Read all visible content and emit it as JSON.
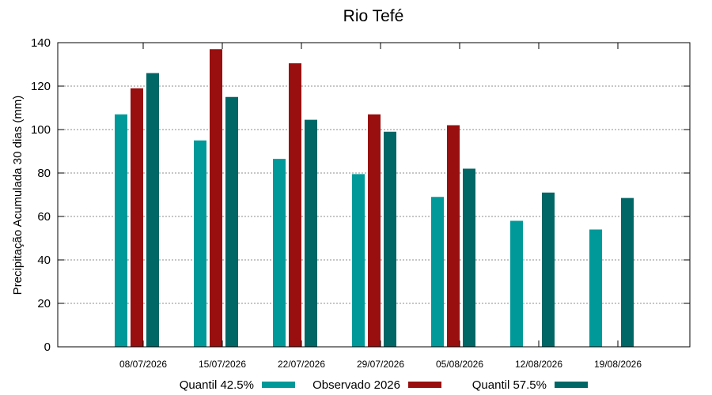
{
  "chart_data": {
    "type": "bar",
    "title": "Rio Tefé",
    "ylabel": "Precipitação Acumulada 30 dias (mm)",
    "xlabel": "",
    "ylim": [
      0,
      140
    ],
    "yticks": [
      0,
      20,
      40,
      60,
      80,
      100,
      120,
      140
    ],
    "grid": true,
    "legend_position": "bottom",
    "categories": [
      "08/07/2026",
      "15/07/2026",
      "22/07/2026",
      "29/07/2026",
      "05/08/2026",
      "12/08/2026",
      "19/08/2026"
    ],
    "series": [
      {
        "name": "Quantil 42.5%",
        "color": "#009999",
        "values": [
          107,
          95,
          86.5,
          79.5,
          69,
          58,
          54
        ]
      },
      {
        "name": "Observado 2026",
        "color": "#990f0f",
        "values": [
          119,
          137,
          130.5,
          107,
          102,
          null,
          null
        ]
      },
      {
        "name": "Quantil 57.5%",
        "color": "#006666",
        "values": [
          126,
          115,
          104.5,
          99,
          82,
          71,
          68.5
        ]
      }
    ]
  }
}
